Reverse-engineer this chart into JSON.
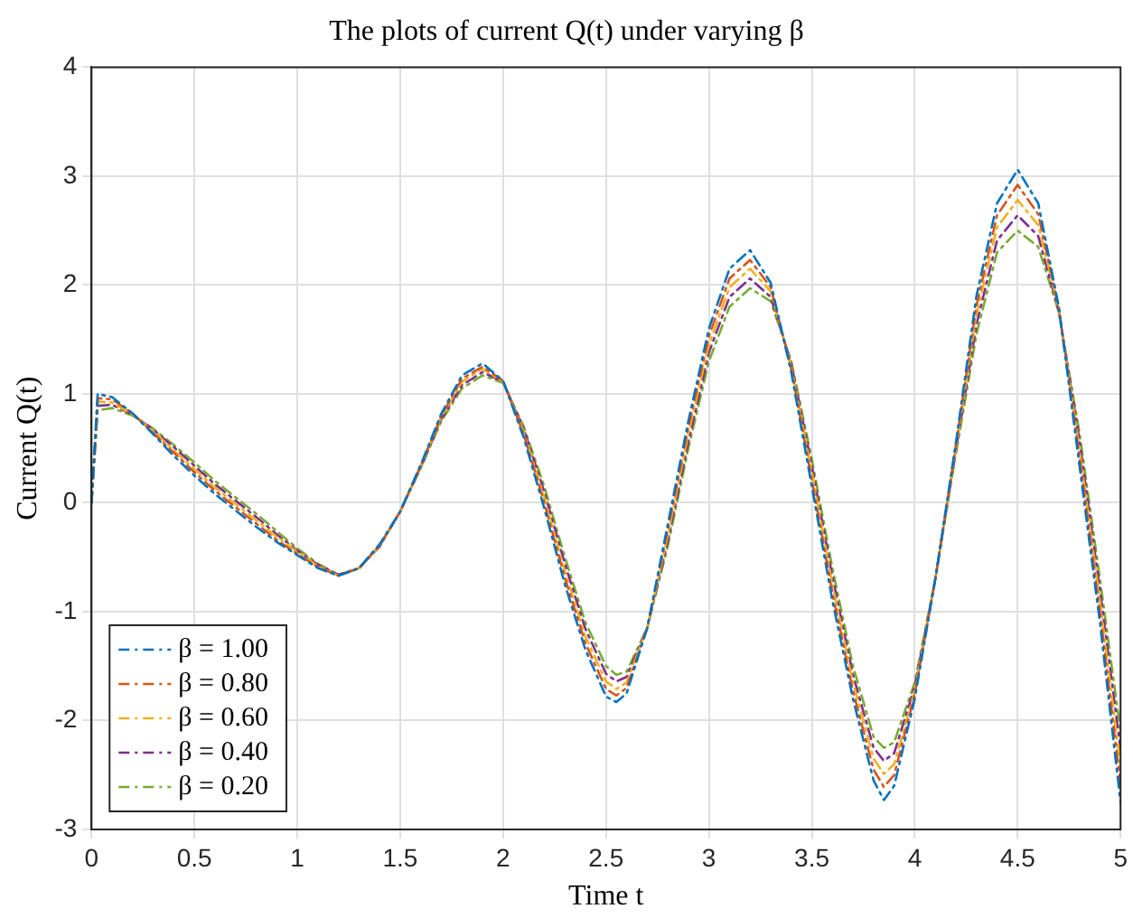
{
  "chart_data": {
    "type": "line",
    "title": "The plots of current Q(t) under varying β",
    "xlabel": "Time t",
    "ylabel": "Current Q(t)",
    "x": [
      0,
      0.03,
      0.1,
      0.2,
      0.3,
      0.4,
      0.5,
      0.6,
      0.7,
      0.8,
      0.9,
      1.0,
      1.1,
      1.2,
      1.3,
      1.4,
      1.5,
      1.6,
      1.7,
      1.8,
      1.9,
      2.0,
      2.1,
      2.2,
      2.3,
      2.4,
      2.5,
      2.55,
      2.6,
      2.7,
      2.8,
      2.9,
      3.0,
      3.1,
      3.2,
      3.3,
      3.4,
      3.5,
      3.6,
      3.7,
      3.8,
      3.85,
      3.9,
      4.0,
      4.1,
      4.2,
      4.3,
      4.4,
      4.5,
      4.6,
      4.7,
      4.8,
      4.9,
      5.0
    ],
    "series": [
      {
        "name": "β = 1.00",
        "color": "#0072bd",
        "values": [
          0,
          1.0,
          0.97,
          0.82,
          0.63,
          0.43,
          0.25,
          0.08,
          -0.07,
          -0.22,
          -0.36,
          -0.48,
          -0.6,
          -0.67,
          -0.6,
          -0.38,
          -0.08,
          0.35,
          0.82,
          1.17,
          1.28,
          1.12,
          0.6,
          -0.05,
          -0.75,
          -1.35,
          -1.78,
          -1.83,
          -1.75,
          -1.15,
          -0.2,
          0.75,
          1.6,
          2.15,
          2.32,
          2.02,
          1.2,
          0.15,
          -0.9,
          -1.8,
          -2.55,
          -2.73,
          -2.6,
          -1.8,
          -0.7,
          0.55,
          1.9,
          2.75,
          3.06,
          2.75,
          1.8,
          0.35,
          -1.1,
          -2.75
        ]
      },
      {
        "name": "β = 0.80",
        "color": "#d95319",
        "values": [
          0,
          0.96,
          0.95,
          0.82,
          0.64,
          0.46,
          0.28,
          0.11,
          -0.04,
          -0.19,
          -0.34,
          -0.47,
          -0.59,
          -0.67,
          -0.6,
          -0.39,
          -0.08,
          0.34,
          0.8,
          1.14,
          1.25,
          1.12,
          0.63,
          0.0,
          -0.69,
          -1.29,
          -1.71,
          -1.77,
          -1.7,
          -1.15,
          -0.25,
          0.69,
          1.53,
          2.06,
          2.23,
          1.98,
          1.23,
          0.21,
          -0.83,
          -1.73,
          -2.45,
          -2.61,
          -2.5,
          -1.76,
          -0.7,
          0.53,
          1.81,
          2.64,
          2.92,
          2.65,
          1.79,
          0.43,
          -1.0,
          -2.59
        ]
      },
      {
        "name": "β = 0.60",
        "color": "#edb120",
        "values": [
          0,
          0.93,
          0.92,
          0.81,
          0.66,
          0.48,
          0.31,
          0.14,
          -0.01,
          -0.16,
          -0.31,
          -0.45,
          -0.58,
          -0.67,
          -0.6,
          -0.39,
          -0.08,
          0.34,
          0.79,
          1.11,
          1.23,
          1.11,
          0.65,
          0.05,
          -0.63,
          -1.23,
          -1.64,
          -1.71,
          -1.65,
          -1.15,
          -0.3,
          0.63,
          1.45,
          1.98,
          2.15,
          1.94,
          1.25,
          0.28,
          -0.75,
          -1.65,
          -2.35,
          -2.49,
          -2.4,
          -1.73,
          -0.7,
          0.5,
          1.73,
          2.53,
          2.78,
          2.55,
          1.78,
          0.5,
          -0.9,
          -2.43
        ]
      },
      {
        "name": "β = 0.40",
        "color": "#7e2f8e",
        "values": [
          0,
          0.89,
          0.9,
          0.81,
          0.67,
          0.51,
          0.34,
          0.17,
          0.02,
          -0.13,
          -0.29,
          -0.44,
          -0.57,
          -0.66,
          -0.6,
          -0.4,
          -0.08,
          0.33,
          0.77,
          1.08,
          1.2,
          1.11,
          0.68,
          0.1,
          -0.56,
          -1.16,
          -1.57,
          -1.64,
          -1.6,
          -1.15,
          -0.35,
          0.56,
          1.38,
          1.89,
          2.06,
          1.89,
          1.28,
          0.34,
          -0.68,
          -1.58,
          -2.25,
          -2.37,
          -2.3,
          -1.69,
          -0.7,
          0.48,
          1.64,
          2.41,
          2.64,
          2.45,
          1.76,
          0.58,
          -0.8,
          -2.26
        ]
      },
      {
        "name": "β = 0.20",
        "color": "#77ac30",
        "values": [
          0,
          0.85,
          0.87,
          0.8,
          0.68,
          0.53,
          0.37,
          0.2,
          0.05,
          -0.1,
          -0.26,
          -0.42,
          -0.56,
          -0.66,
          -0.6,
          -0.4,
          -0.08,
          0.32,
          0.75,
          1.05,
          1.17,
          1.1,
          0.7,
          0.15,
          -0.5,
          -1.1,
          -1.5,
          -1.58,
          -1.55,
          -1.15,
          -0.4,
          0.5,
          1.3,
          1.8,
          1.97,
          1.85,
          1.3,
          0.4,
          -0.6,
          -1.5,
          -2.15,
          -2.25,
          -2.2,
          -1.65,
          -0.7,
          0.45,
          1.55,
          2.3,
          2.5,
          2.35,
          1.75,
          0.65,
          -0.7,
          -2.1
        ]
      }
    ],
    "xlim": [
      0,
      5
    ],
    "xticks": [
      0,
      0.5,
      1,
      1.5,
      2,
      2.5,
      3,
      3.5,
      4,
      4.5,
      5
    ],
    "ylim": [
      -3,
      4
    ],
    "yticks": [
      -3,
      -2,
      -1,
      0,
      1,
      2,
      3,
      4
    ],
    "grid": true,
    "legend": "bottom left",
    "marker": "none",
    "line_style": "dashed"
  }
}
